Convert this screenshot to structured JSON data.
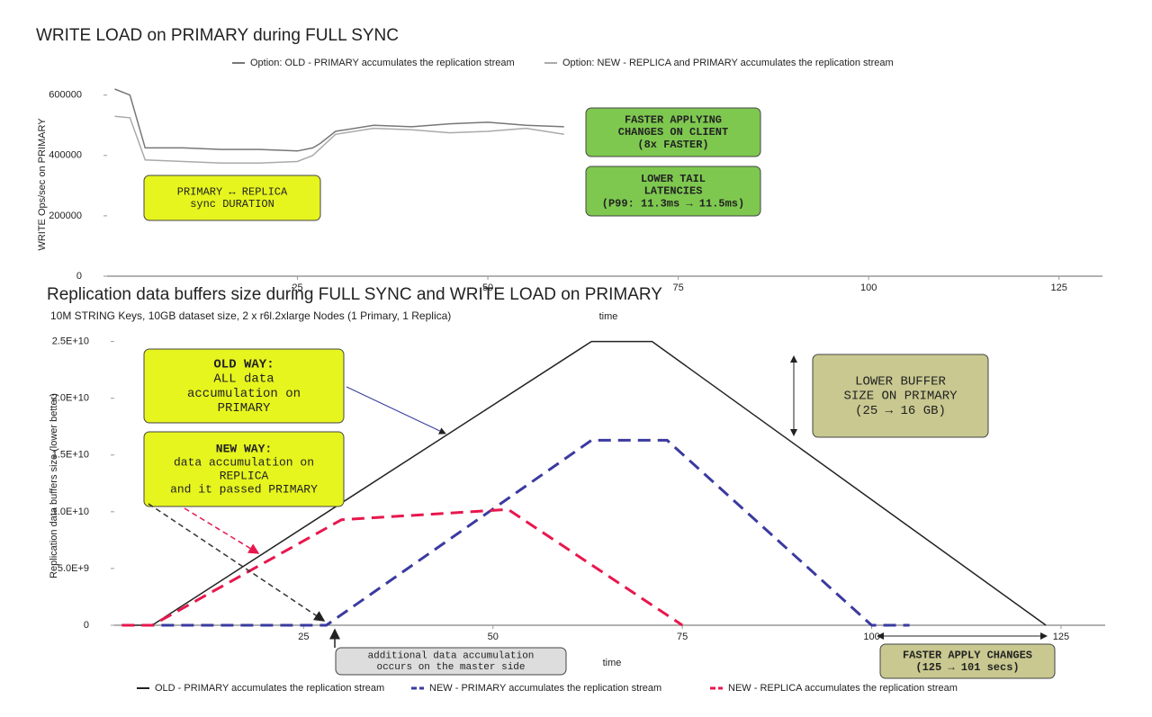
{
  "chart_data": [
    {
      "type": "line",
      "title": "WRITE LOAD on PRIMARY during FULL SYNC",
      "y_label": "WRITE Ops/sec on PRIMARY",
      "x_label": "time",
      "xlim": [
        0,
        130
      ],
      "xticks": [
        25,
        50,
        75,
        100,
        125
      ],
      "ylim": [
        0,
        620000
      ],
      "yticks": [
        0,
        200000,
        400000,
        600000
      ],
      "series": [
        {
          "name": "Option: OLD - PRIMARY accumulates the replication stream",
          "color": "#777777",
          "style": "solid",
          "x": [
            1,
            3,
            5,
            10,
            15,
            20,
            25,
            27,
            28,
            30,
            35,
            40,
            45,
            50,
            55,
            60
          ],
          "values": [
            620000,
            600000,
            425000,
            425000,
            420000,
            420000,
            415000,
            425000,
            440000,
            480000,
            500000,
            495000,
            505000,
            510000,
            500000,
            495000
          ]
        },
        {
          "name": "Option: NEW - REPLICA and PRIMARY accumulates the replication stream",
          "color": "#aaaaaa",
          "style": "solid",
          "x": [
            1,
            3,
            5,
            10,
            15,
            20,
            25,
            27,
            30,
            35,
            40,
            45,
            50,
            55,
            60
          ],
          "values": [
            530000,
            525000,
            385000,
            380000,
            375000,
            375000,
            380000,
            400000,
            470000,
            490000,
            485000,
            475000,
            480000,
            490000,
            470000
          ]
        }
      ],
      "annotations": [
        [
          "PRIMARY ↔ REPLICA",
          "sync DURATION"
        ],
        [
          "FASTER APPLYING",
          "CHANGES ON CLIENT",
          "(8x FASTER)"
        ],
        [
          "LOWER TAIL",
          "LATENCIES",
          "(P99: 11.3ms → 11.5ms)"
        ]
      ]
    },
    {
      "type": "line",
      "title": "Replication data buffers size during FULL SYNC and WRITE LOAD on PRIMARY",
      "subtitle": "10M STRING Keys, 10GB dataset size, 2 x r6l.2xlarge Nodes (1 Primary, 1 Replica)",
      "y_label": "Replication data buffers size (lower better)",
      "x_label": "time",
      "xlim": [
        0,
        130
      ],
      "xticks": [
        25,
        50,
        75,
        100,
        125
      ],
      "ylim": [
        0,
        26000000000
      ],
      "yticks": [
        0,
        {
          "value": 5000000000,
          "label": "5.0E+9"
        },
        {
          "value": 10000000000,
          "label": "1.0E+10"
        },
        {
          "value": 15000000000,
          "label": "1.5E+10"
        },
        {
          "value": 20000000000,
          "label": "2.0E+10"
        },
        {
          "value": 25000000000,
          "label": "2.5E+10"
        }
      ],
      "series": [
        {
          "name": "OLD - PRIMARY accumulates the replication stream",
          "color": "#222222",
          "style": "solid",
          "x": [
            1,
            5,
            63,
            71,
            123
          ],
          "values": [
            0,
            0,
            25000000000,
            25000000000,
            0
          ]
        },
        {
          "name": "NEW - PRIMARY accumulates the replication stream",
          "color": "#3a3aa0",
          "style": "dashed",
          "x": [
            1,
            28,
            63,
            73,
            100,
            105
          ],
          "values": [
            0,
            0,
            16300000000,
            16300000000,
            0,
            0
          ]
        },
        {
          "name": "NEW - REPLICA accumulates the replication stream",
          "color": "#e8174d",
          "style": "dashed",
          "x": [
            1,
            5,
            30,
            52,
            75
          ],
          "values": [
            0,
            0,
            9300000000,
            10200000000,
            0
          ]
        }
      ],
      "annotations": [
        [
          "OLD WAY:",
          "ALL data",
          "accumulation on",
          "PRIMARY"
        ],
        [
          "NEW WAY:",
          "data accumulation on",
          "REPLICA",
          "and it passed PRIMARY"
        ],
        [
          "LOWER BUFFER",
          "SIZE ON PRIMARY",
          "(25 → 16 GB)"
        ],
        [
          "additional data accumulation",
          "occurs on the master side"
        ],
        [
          "FASTER APPLY CHANGES",
          "(125 → 101 secs)"
        ]
      ]
    }
  ]
}
